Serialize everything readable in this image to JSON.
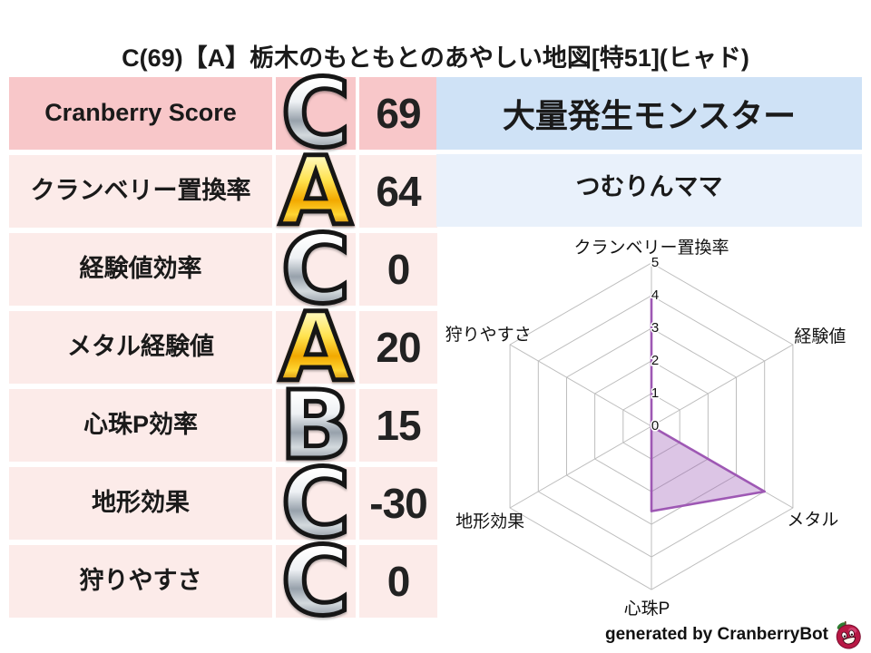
{
  "title": "C(69)【A】栃木のもともとのあやしい地図[特51](ヒャド)",
  "stats_table": {
    "rows": [
      {
        "label": "Cranberry Score",
        "grade": "C",
        "value": "69"
      },
      {
        "label": "クランベリー置換率",
        "grade": "A",
        "value": "64"
      },
      {
        "label": "経験値効率",
        "grade": "C",
        "value": "0"
      },
      {
        "label": "メタル経験値",
        "grade": "A",
        "value": "20"
      },
      {
        "label": "心珠P効率",
        "grade": "B",
        "value": "15"
      },
      {
        "label": "地形効果",
        "grade": "C",
        "value": "-30"
      },
      {
        "label": "狩りやすさ",
        "grade": "C",
        "value": "0"
      }
    ]
  },
  "monster_panel": {
    "header": "大量発生モンスター",
    "name": "つむりんママ"
  },
  "chart_data": {
    "type": "radar",
    "axes": [
      "クランベリー置換率",
      "経験値",
      "メタル",
      "心珠P",
      "地形効果",
      "狩りやすさ"
    ],
    "values": [
      4,
      0,
      4,
      2.6,
      0,
      0
    ],
    "r_range": [
      0,
      5
    ],
    "r_ticks": [
      0,
      1,
      2,
      3,
      4,
      5
    ],
    "grid": "on",
    "grid_color": "#bdbdbd",
    "line_color": "#9e58b4",
    "fill_color": "rgba(155,88,180,0.35)",
    "tick_color": "#111111",
    "label_color": "#111111",
    "legend": "none"
  },
  "footer": {
    "credit": "generated by CranberryBot",
    "icon": "cranberry-bot-icon"
  },
  "colors": {
    "row_highlight_pink": "#f8c7c9",
    "row_pink": "#fcebe9",
    "header_blue": "#cfe2f6",
    "name_blue": "#e9f1fb",
    "grade_gold": "#f2a900",
    "grade_silver": "#c3cad3",
    "radar_line": "#9e58b4",
    "berry_red": "#b81844",
    "leaf_green": "#2f7d32"
  }
}
